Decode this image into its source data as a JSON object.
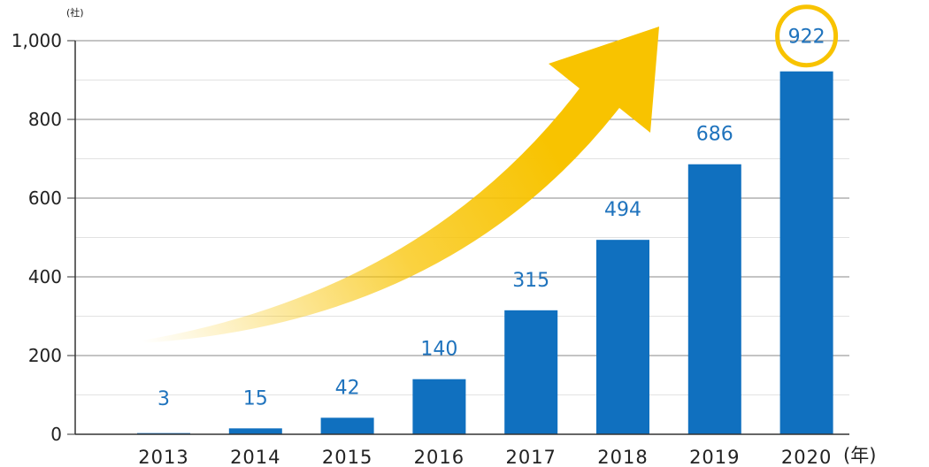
{
  "chart_data": {
    "type": "bar",
    "categories": [
      "2013",
      "2014",
      "2015",
      "2016",
      "2017",
      "2018",
      "2019",
      "2020"
    ],
    "values": [
      3,
      15,
      42,
      140,
      315,
      494,
      686,
      922
    ],
    "ylim": [
      0,
      1000
    ],
    "y_ticks": [
      "0",
      "200",
      "400",
      "600",
      "800",
      "1,000"
    ],
    "y_unit": "(社)",
    "x_unit": "(年)",
    "grid": true,
    "bar_color": "#1070bf",
    "label_color": "#1f73bd",
    "highlight": {
      "category": "2020",
      "circle_color": "#f8c300"
    },
    "arrow": {
      "color": "#f8c300",
      "meaning": "growth trend"
    }
  }
}
